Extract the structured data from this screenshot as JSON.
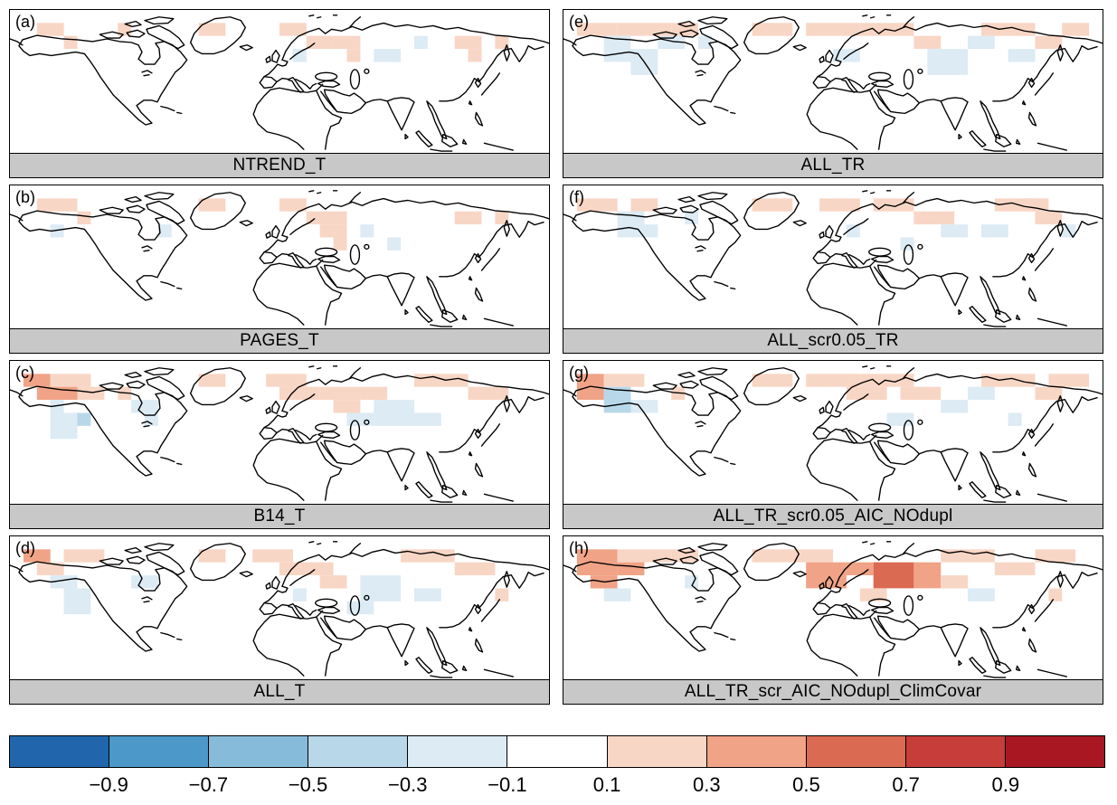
{
  "palette_note": "diverging blue-white-red correlation scale",
  "chart_data": {
    "type": "heatmap",
    "layout": "8 map panels (4 rows x 2 columns) of Northern Hemisphere correlation/skill maps with shared diverging colorbar",
    "grid": {
      "cols": 40,
      "rows": 11
    },
    "panels": [
      {
        "id": "a",
        "tag": "(a)",
        "label": "NTREND_T",
        "cells": [
          [
            2,
            1,
            2,
            1,
            0.2
          ],
          [
            4,
            2,
            1,
            1,
            0.2
          ],
          [
            8,
            1,
            1,
            1,
            0.2
          ],
          [
            14,
            1,
            2,
            1,
            0.2
          ],
          [
            20,
            1,
            2,
            1,
            0.2
          ],
          [
            22,
            2,
            2,
            1,
            0.2
          ],
          [
            24,
            2,
            2,
            1,
            0.2
          ],
          [
            25,
            3,
            1,
            1,
            0.2
          ],
          [
            21,
            3,
            1,
            1,
            -0.2
          ],
          [
            27,
            3,
            2,
            1,
            -0.2
          ],
          [
            30,
            2,
            1,
            1,
            -0.2
          ],
          [
            33,
            2,
            2,
            1,
            0.2
          ],
          [
            36,
            2,
            1,
            1,
            0.2
          ],
          [
            34,
            3,
            1,
            1,
            0.2
          ]
        ]
      },
      {
        "id": "b",
        "tag": "(b)",
        "label": "PAGES_T",
        "cells": [
          [
            2,
            1,
            3,
            1,
            0.2
          ],
          [
            5,
            2,
            1,
            1,
            0.2
          ],
          [
            3,
            3,
            1,
            1,
            -0.2
          ],
          [
            14,
            1,
            2,
            1,
            0.2
          ],
          [
            20,
            1,
            2,
            1,
            0.2
          ],
          [
            22,
            2,
            3,
            1,
            0.2
          ],
          [
            23,
            3,
            2,
            1,
            0.2
          ],
          [
            26,
            3,
            1,
            1,
            -0.2
          ],
          [
            28,
            4,
            1,
            1,
            -0.2
          ],
          [
            33,
            2,
            2,
            1,
            0.2
          ],
          [
            36,
            2,
            1,
            1,
            0.2
          ],
          [
            11,
            3,
            1,
            1,
            -0.2
          ],
          [
            24,
            4,
            1,
            1,
            0.2
          ]
        ]
      },
      {
        "id": "c",
        "tag": "(c)",
        "label": "B14_T",
        "cells": [
          [
            1,
            1,
            2,
            1,
            0.4
          ],
          [
            3,
            1,
            3,
            1,
            0.2
          ],
          [
            2,
            2,
            3,
            1,
            0.4
          ],
          [
            5,
            2,
            2,
            1,
            0.2
          ],
          [
            3,
            3,
            1,
            1,
            -0.2
          ],
          [
            3,
            4,
            2,
            2,
            -0.2
          ],
          [
            5,
            4,
            1,
            1,
            -0.4
          ],
          [
            9,
            3,
            2,
            1,
            -0.2
          ],
          [
            10,
            4,
            1,
            1,
            -0.2
          ],
          [
            14,
            1,
            2,
            1,
            0.2
          ],
          [
            19,
            1,
            3,
            1,
            0.2
          ],
          [
            20,
            2,
            3,
            1,
            0.2
          ],
          [
            23,
            2,
            3,
            1,
            0.2
          ],
          [
            26,
            2,
            2,
            1,
            0.2
          ],
          [
            24,
            3,
            2,
            1,
            0.2
          ],
          [
            27,
            3,
            3,
            2,
            -0.2
          ],
          [
            25,
            4,
            2,
            1,
            -0.2
          ],
          [
            30,
            1,
            4,
            1,
            0.2
          ],
          [
            34,
            2,
            3,
            1,
            0.2
          ],
          [
            30,
            4,
            2,
            1,
            -0.2
          ],
          [
            8,
            2,
            1,
            1,
            0.2
          ]
        ]
      },
      {
        "id": "d",
        "tag": "(d)",
        "label": "ALL_T",
        "cells": [
          [
            1,
            1,
            2,
            1,
            0.4
          ],
          [
            2,
            2,
            2,
            1,
            0.2
          ],
          [
            4,
            1,
            3,
            1,
            0.2
          ],
          [
            3,
            3,
            2,
            1,
            -0.2
          ],
          [
            4,
            4,
            2,
            2,
            -0.2
          ],
          [
            9,
            3,
            2,
            1,
            -0.2
          ],
          [
            14,
            1,
            2,
            1,
            0.2
          ],
          [
            18,
            1,
            3,
            1,
            0.2
          ],
          [
            20,
            2,
            4,
            1,
            0.2
          ],
          [
            23,
            3,
            2,
            1,
            0.2
          ],
          [
            26,
            3,
            3,
            2,
            -0.2
          ],
          [
            25,
            5,
            2,
            1,
            -0.2
          ],
          [
            29,
            1,
            4,
            1,
            0.2
          ],
          [
            33,
            2,
            3,
            1,
            0.2
          ],
          [
            30,
            4,
            2,
            1,
            -0.2
          ],
          [
            36,
            4,
            1,
            1,
            0.2
          ],
          [
            21,
            4,
            1,
            1,
            -0.2
          ]
        ]
      },
      {
        "id": "e",
        "tag": "(e)",
        "label": "ALL_TR",
        "cells": [
          [
            1,
            1,
            3,
            1,
            0.2
          ],
          [
            4,
            1,
            4,
            1,
            0.2
          ],
          [
            8,
            1,
            2,
            1,
            0.2
          ],
          [
            3,
            2,
            2,
            2,
            -0.2
          ],
          [
            5,
            3,
            2,
            2,
            -0.2
          ],
          [
            7,
            2,
            2,
            1,
            -0.2
          ],
          [
            14,
            1,
            3,
            1,
            0.2
          ],
          [
            18,
            1,
            4,
            1,
            0.2
          ],
          [
            22,
            1,
            4,
            1,
            0.2
          ],
          [
            20,
            3,
            2,
            1,
            -0.2
          ],
          [
            26,
            2,
            2,
            1,
            0.2
          ],
          [
            27,
            3,
            3,
            2,
            -0.2
          ],
          [
            30,
            2,
            2,
            1,
            -0.2
          ],
          [
            31,
            1,
            4,
            1,
            0.2
          ],
          [
            35,
            2,
            2,
            1,
            0.2
          ],
          [
            33,
            3,
            2,
            1,
            -0.2
          ],
          [
            37,
            1,
            2,
            1,
            0.2
          ],
          [
            10,
            2,
            1,
            1,
            -0.2
          ]
        ]
      },
      {
        "id": "f",
        "tag": "(f)",
        "label": "ALL_scr0.05_TR",
        "cells": [
          [
            1,
            1,
            3,
            1,
            0.2
          ],
          [
            5,
            1,
            2,
            1,
            0.2
          ],
          [
            4,
            2,
            2,
            2,
            -0.2
          ],
          [
            6,
            3,
            1,
            1,
            -0.2
          ],
          [
            14,
            1,
            3,
            1,
            0.2
          ],
          [
            19,
            1,
            3,
            1,
            0.2
          ],
          [
            23,
            1,
            3,
            1,
            0.2
          ],
          [
            21,
            3,
            1,
            1,
            -0.2
          ],
          [
            26,
            2,
            3,
            1,
            0.2
          ],
          [
            28,
            3,
            2,
            1,
            -0.2
          ],
          [
            31,
            3,
            2,
            1,
            -0.2
          ],
          [
            32,
            1,
            3,
            1,
            0.2
          ],
          [
            35,
            2,
            2,
            1,
            0.2
          ],
          [
            37,
            3,
            1,
            1,
            -0.2
          ],
          [
            9,
            2,
            1,
            1,
            -0.2
          ],
          [
            25,
            4,
            1,
            1,
            -0.2
          ],
          [
            34,
            1,
            2,
            1,
            0.2
          ]
        ]
      },
      {
        "id": "g",
        "tag": "(g)",
        "label": "ALL_TR_scr0.05_AIC_NOdupl",
        "cells": [
          [
            1,
            1,
            2,
            2,
            0.4
          ],
          [
            3,
            1,
            3,
            1,
            0.2
          ],
          [
            3,
            2,
            2,
            2,
            -0.4
          ],
          [
            5,
            3,
            2,
            1,
            -0.2
          ],
          [
            8,
            2,
            1,
            1,
            0.2
          ],
          [
            14,
            1,
            3,
            1,
            0.2
          ],
          [
            18,
            1,
            4,
            1,
            0.2
          ],
          [
            21,
            2,
            3,
            1,
            0.2
          ],
          [
            22,
            1,
            4,
            1,
            0.2
          ],
          [
            25,
            2,
            3,
            1,
            0.2
          ],
          [
            28,
            3,
            2,
            1,
            -0.2
          ],
          [
            30,
            2,
            2,
            1,
            -0.2
          ],
          [
            31,
            1,
            4,
            1,
            0.2
          ],
          [
            35,
            2,
            2,
            1,
            0.2
          ],
          [
            36,
            1,
            3,
            1,
            0.2
          ],
          [
            24,
            4,
            2,
            1,
            -0.2
          ],
          [
            33,
            4,
            1,
            1,
            -0.2
          ]
        ]
      },
      {
        "id": "h",
        "tag": "(h)",
        "label": "ALL_TR_scr_AIC_NOdupl_ClimCovar",
        "cells": [
          [
            1,
            1,
            3,
            2,
            0.4
          ],
          [
            2,
            3,
            2,
            1,
            0.4
          ],
          [
            4,
            1,
            4,
            1,
            0.2
          ],
          [
            4,
            2,
            2,
            1,
            0.4
          ],
          [
            8,
            1,
            2,
            1,
            0.2
          ],
          [
            3,
            4,
            2,
            1,
            -0.2
          ],
          [
            9,
            3,
            1,
            1,
            -0.2
          ],
          [
            14,
            1,
            3,
            1,
            0.2
          ],
          [
            17,
            1,
            3,
            1,
            0.2
          ],
          [
            18,
            2,
            3,
            2,
            0.4
          ],
          [
            21,
            2,
            2,
            1,
            0.4
          ],
          [
            23,
            2,
            3,
            2,
            0.6
          ],
          [
            26,
            2,
            2,
            2,
            0.4
          ],
          [
            28,
            1,
            4,
            1,
            0.2
          ],
          [
            28,
            3,
            2,
            1,
            0.2
          ],
          [
            32,
            2,
            3,
            1,
            0.2
          ],
          [
            35,
            1,
            3,
            1,
            0.2
          ],
          [
            30,
            4,
            2,
            1,
            -0.2
          ],
          [
            36,
            4,
            1,
            1,
            0.2
          ],
          [
            22,
            4,
            2,
            1,
            0.2
          ]
        ]
      }
    ],
    "colorbar": {
      "tick_labels": [
        "−0.9",
        "−0.7",
        "−0.5",
        "−0.3",
        "−0.1",
        "0.1",
        "0.3",
        "0.5",
        "0.7",
        "0.9"
      ],
      "tick_values": [
        -0.9,
        -0.7,
        -0.5,
        -0.3,
        -0.1,
        0.1,
        0.3,
        0.5,
        0.7,
        0.9
      ],
      "range": [
        -1.1,
        1.1
      ],
      "segment_colors": [
        "#2166ac",
        "#4c98c8",
        "#86bcd9",
        "#b8d8ea",
        "#dcebf4",
        "#ffffff",
        "#f8d6c5",
        "#f0a386",
        "#db6a52",
        "#c63d39",
        "#a81722"
      ],
      "hatched_last_segment": true,
      "value_colors": {
        "-0.4": "#b8d8ea",
        "-0.2": "#dcebf4",
        "0.2": "#f8d6c5",
        "0.4": "#f0a386",
        "0.6": "#db6a52"
      }
    },
    "caption_bar_color": "#c8c8c8",
    "coastline_color": "#000000"
  }
}
